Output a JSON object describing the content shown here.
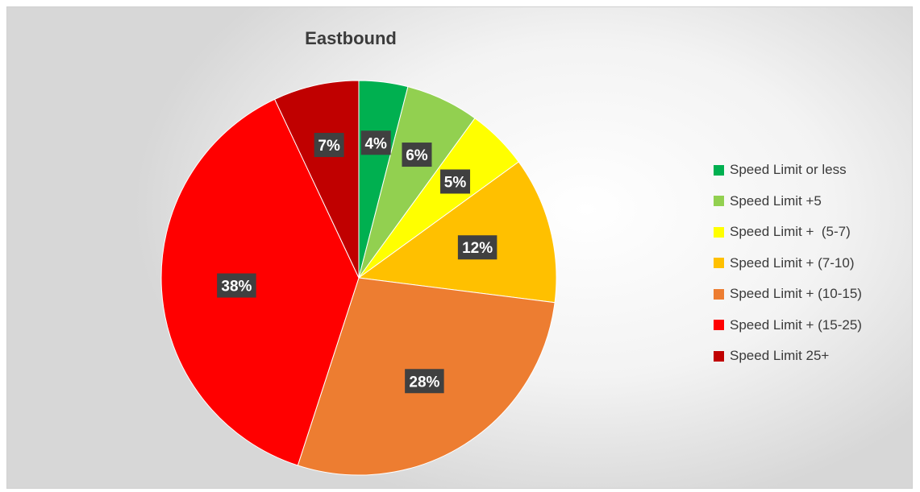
{
  "chart_data": {
    "type": "pie",
    "title": "Eastbound",
    "categories": [
      "Speed Limit or less",
      "Speed Limit +5",
      "Speed Limit +  (5-7)",
      "Speed Limit + (7-10)",
      "Speed Limit + (10-15)",
      "Speed Limit + (15-25)",
      "Speed Limit 25+"
    ],
    "values": [
      4,
      6,
      5,
      12,
      28,
      38,
      7
    ],
    "data_labels": [
      "4%",
      "6%",
      "5%",
      "12%",
      "28%",
      "38%",
      "7%"
    ],
    "colors": [
      "#00b050",
      "#92d050",
      "#ffff00",
      "#ffc000",
      "#ed7d31",
      "#ff0000",
      "#c00000"
    ],
    "legend_position": "right",
    "start_angle": "12 o'clock, clockwise"
  }
}
